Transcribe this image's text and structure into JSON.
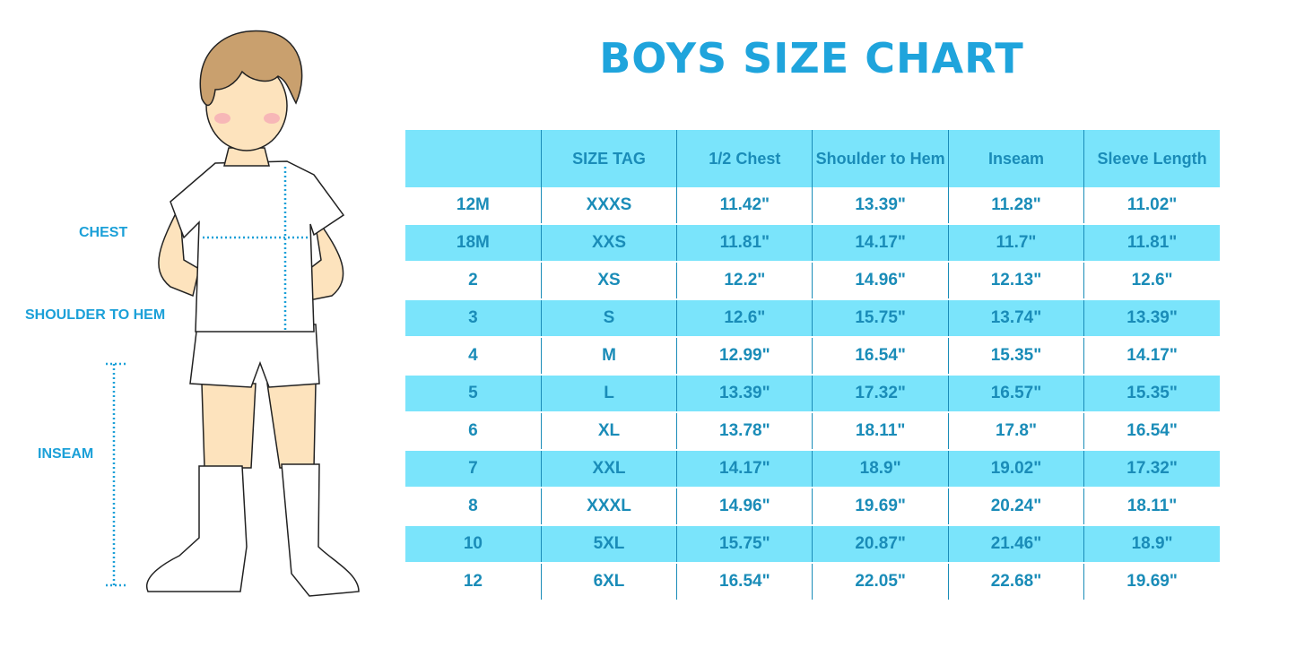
{
  "title": "BOYS SIZE CHART",
  "measure_labels": {
    "chest": "CHEST",
    "shoulder_to_hem": "SHOULDER TO HEM",
    "inseam": "INSEAM"
  },
  "colors": {
    "accent": "#1FA4DC",
    "row_highlight": "#7AE4FB",
    "table_text": "#1A8CB8"
  },
  "table": {
    "headers": [
      "",
      "SIZE TAG",
      "1/2 Chest",
      "Shoulder to Hem",
      "Inseam",
      "Sleeve Length"
    ],
    "rows": [
      [
        "12M",
        "XXXS",
        "11.42\"",
        "13.39\"",
        "11.28\"",
        "11.02\""
      ],
      [
        "18M",
        "XXS",
        "11.81\"",
        "14.17\"",
        "11.7\"",
        "11.81\""
      ],
      [
        "2",
        "XS",
        "12.2\"",
        "14.96\"",
        "12.13\"",
        "12.6\""
      ],
      [
        "3",
        "S",
        "12.6\"",
        "15.75\"",
        "13.74\"",
        "13.39\""
      ],
      [
        "4",
        "M",
        "12.99\"",
        "16.54\"",
        "15.35\"",
        "14.17\""
      ],
      [
        "5",
        "L",
        "13.39\"",
        "17.32\"",
        "16.57\"",
        "15.35\""
      ],
      [
        "6",
        "XL",
        "13.78\"",
        "18.11\"",
        "17.8\"",
        "16.54\""
      ],
      [
        "7",
        "XXL",
        "14.17\"",
        "18.9\"",
        "19.02\"",
        "17.32\""
      ],
      [
        "8",
        "XXXL",
        "14.96\"",
        "19.69\"",
        "20.24\"",
        "18.11\""
      ],
      [
        "10",
        "5XL",
        "15.75\"",
        "20.87\"",
        "21.46\"",
        "18.9\""
      ],
      [
        "12",
        "6XL",
        "16.54\"",
        "22.05\"",
        "22.68\"",
        "19.69\""
      ]
    ]
  }
}
